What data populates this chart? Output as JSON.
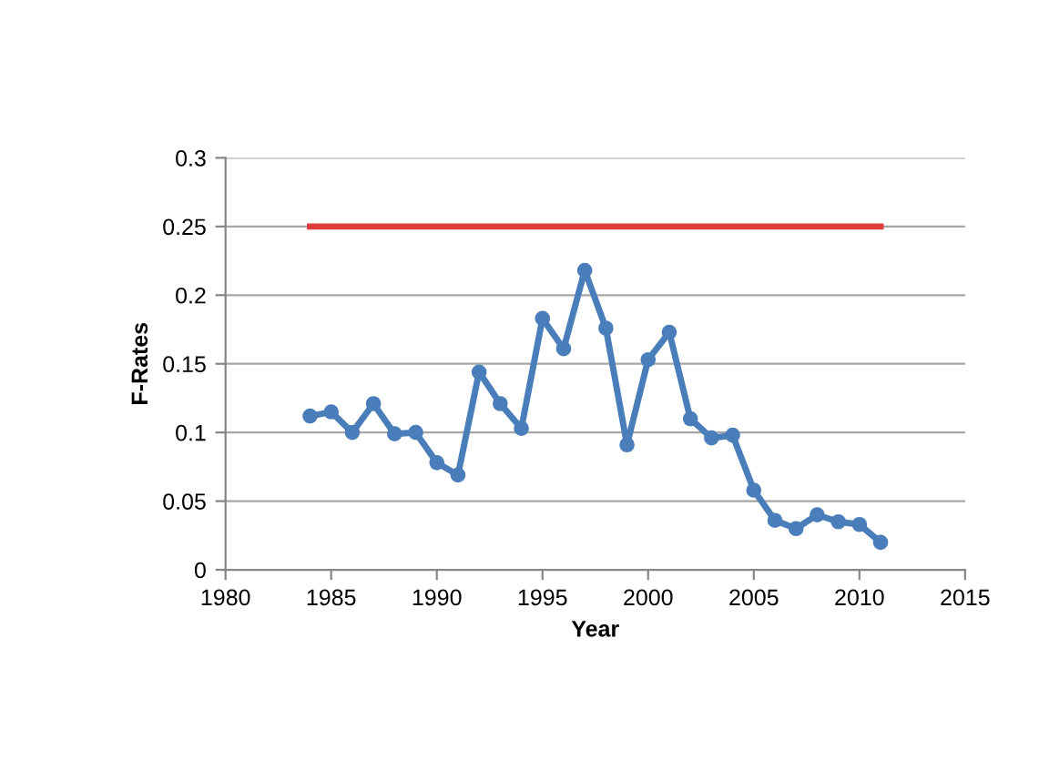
{
  "chart_data": {
    "type": "line",
    "xlabel": "Year",
    "ylabel": "F-Rates",
    "x": [
      1984,
      1985,
      1986,
      1987,
      1988,
      1989,
      1990,
      1991,
      1992,
      1993,
      1994,
      1995,
      1996,
      1997,
      1998,
      1999,
      2000,
      2001,
      2002,
      2003,
      2004,
      2005,
      2006,
      2007,
      2008,
      2009,
      2010,
      2011
    ],
    "series": [
      {
        "color": "#4a7ebb",
        "marker": "circle",
        "values": [
          0.112,
          0.115,
          0.1,
          0.121,
          0.099,
          0.1,
          0.078,
          0.069,
          0.144,
          0.121,
          0.103,
          0.183,
          0.161,
          0.218,
          0.176,
          0.091,
          0.153,
          0.173,
          0.11,
          0.096,
          0.098,
          0.058,
          0.036,
          0.03,
          0.04,
          0.035,
          0.033,
          0.02
        ]
      },
      {
        "color": "#e03c3c",
        "marker": "none",
        "x": [
          1984,
          2011
        ],
        "values": [
          0.25,
          0.25
        ]
      }
    ],
    "xlim": [
      1980,
      2015
    ],
    "xticks": [
      1980,
      1985,
      1990,
      1995,
      2000,
      2005,
      2010,
      2015
    ],
    "ylim": [
      0,
      0.3
    ],
    "yticks": [
      0,
      0.05,
      0.1,
      0.15,
      0.2,
      0.25,
      0.3
    ],
    "grid": "y"
  }
}
